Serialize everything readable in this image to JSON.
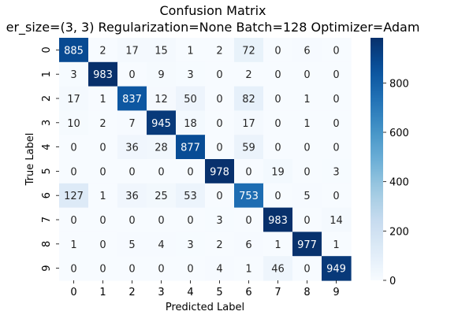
{
  "chart_data": {
    "type": "heatmap",
    "title": "Confusion Matrix",
    "subtitle": "er_size=(3, 3) Regularization=None Batch=128 Optimizer=Adam",
    "xlabel": "Predicted Label",
    "ylabel": "True Label",
    "x_categories": [
      "0",
      "1",
      "2",
      "3",
      "4",
      "5",
      "6",
      "7",
      "8",
      "9"
    ],
    "y_categories": [
      "0",
      "1",
      "2",
      "3",
      "4",
      "5",
      "6",
      "7",
      "8",
      "9"
    ],
    "values": [
      [
        885,
        2,
        17,
        15,
        1,
        2,
        72,
        0,
        6,
        0
      ],
      [
        3,
        983,
        0,
        9,
        3,
        0,
        2,
        0,
        0,
        0
      ],
      [
        17,
        1,
        837,
        12,
        50,
        0,
        82,
        0,
        1,
        0
      ],
      [
        10,
        2,
        7,
        945,
        18,
        0,
        17,
        0,
        1,
        0
      ],
      [
        0,
        0,
        36,
        28,
        877,
        0,
        59,
        0,
        0,
        0
      ],
      [
        0,
        0,
        0,
        0,
        0,
        978,
        0,
        19,
        0,
        3
      ],
      [
        127,
        1,
        36,
        25,
        53,
        0,
        753,
        0,
        5,
        0
      ],
      [
        0,
        0,
        0,
        0,
        0,
        3,
        0,
        983,
        0,
        14
      ],
      [
        1,
        0,
        5,
        4,
        3,
        2,
        6,
        1,
        977,
        1
      ],
      [
        0,
        0,
        0,
        0,
        0,
        4,
        1,
        46,
        0,
        949
      ]
    ],
    "colormap": "Blues",
    "colorbar": {
      "vmin": 0,
      "vmax": 983,
      "ticks": [
        0,
        200,
        400,
        600,
        800
      ]
    },
    "grid": false,
    "colors": {
      "low": "#f7fbff",
      "high": "#08306b",
      "text_dark": "#262626",
      "text_light": "#ffffff"
    }
  }
}
